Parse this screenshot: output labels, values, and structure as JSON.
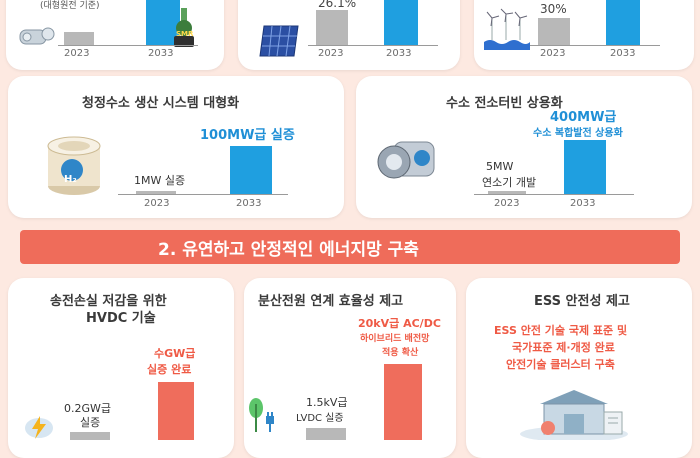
{
  "colors": {
    "background": "#fde9e1",
    "blue_bar": "#1f9fe0",
    "gray_bar": "#b8b8b8",
    "red_bar": "#ef6d5c",
    "banner": "#ef6c5a"
  },
  "top_row": {
    "card1": {
      "note": "(대형원전 기준)",
      "year_a": "2023",
      "year_b": "2033",
      "badge": "SMR"
    },
    "card2": {
      "value": "26.1%",
      "year_a": "2023",
      "year_b": "2033"
    },
    "card3": {
      "value": "30%",
      "year_a": "2023",
      "year_b": "2033"
    }
  },
  "row2": {
    "card_left": {
      "title": "청정수소 생산 시스템 대형화",
      "bar_a_label": "1MW 실증",
      "bar_b_label": "100MW급 실증",
      "year_a": "2023",
      "year_b": "2033",
      "icon_label": "H₂"
    },
    "card_right": {
      "title": "수소 전소터빈 상용화",
      "bar_a_label_1": "5MW",
      "bar_a_label_2": "연소기 개발",
      "bar_b_label_1": "400MW급",
      "bar_b_label_2": "수소 복합발전 상용화",
      "year_a": "2023",
      "year_b": "2033"
    }
  },
  "banner": {
    "title": "2. 유연하고 안정적인 에너지망 구축"
  },
  "row3": {
    "card1": {
      "title_1": "송전손실 저감을 위한",
      "title_2": "HVDC 기술",
      "bar_a_label_1": "0.2GW급",
      "bar_a_label_2": "실증",
      "bar_b_label_1": "수GW급",
      "bar_b_label_2": "실증 완료"
    },
    "card2": {
      "title": "분산전원 연계 효율성 제고",
      "bar_a_label_1": "1.5kV급",
      "bar_a_label_2": "LVDC 실증",
      "bar_b_label_1": "20kV급 AC/DC",
      "bar_b_label_2": "하이브리드 배전망",
      "bar_b_label_3": "적용 확산"
    },
    "card3": {
      "title": "ESS 안전성 제고",
      "text_1": "ESS 안전 기술 국제 표준 및",
      "text_2": "국가표준 제·개정 완료",
      "text_3": "안전기술 클러스터 구축"
    }
  }
}
